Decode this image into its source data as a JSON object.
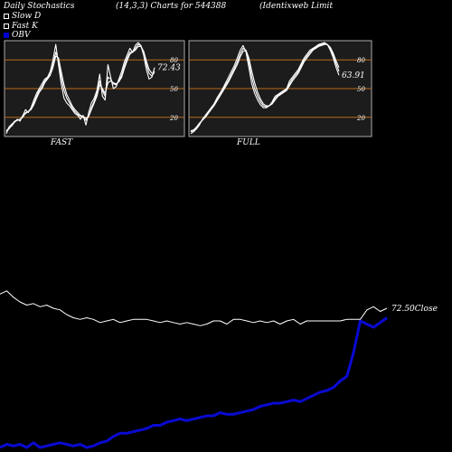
{
  "header": {
    "left": "Daily Stochastics",
    "center": "(14,3,3) Charts for 544388",
    "right": "(Identixweb Limit"
  },
  "legend": [
    {
      "label": "Slow  D",
      "swatch": "white"
    },
    {
      "label": "Fast K",
      "swatch": "white"
    },
    {
      "label": "OBV",
      "swatch": "blue"
    }
  ],
  "colors": {
    "background": "#000000",
    "panel_bg": "#1c1c1c",
    "panel_border": "#aaaaaa",
    "level_line": "#b86a1a",
    "stoch_line": "#ffffff",
    "obv_line": "#0a0ad2",
    "price_line": "#ffffff"
  },
  "chart_data": [
    {
      "type": "line",
      "name": "fast-stochastic",
      "caption": "FAST",
      "ylim": [
        0,
        100
      ],
      "levels": [
        80,
        50,
        20
      ],
      "level_labels": [
        "80",
        "50",
        "20"
      ],
      "last_value_label": "72.43",
      "series": [
        {
          "values": [
            3,
            10,
            13,
            15,
            18,
            16,
            22,
            28,
            25,
            30,
            38,
            45,
            50,
            55,
            60,
            62,
            68,
            80,
            96,
            75,
            55,
            40,
            35,
            32,
            28,
            24,
            22,
            18,
            22,
            12,
            25,
            35,
            40,
            48,
            65,
            42,
            38,
            75,
            62,
            50,
            52,
            60,
            68,
            78,
            85,
            92,
            88,
            95,
            98,
            95,
            85,
            70,
            60,
            62,
            72
          ]
        },
        {
          "values": [
            5,
            8,
            12,
            16,
            17,
            18,
            20,
            25,
            26,
            29,
            35,
            42,
            48,
            52,
            58,
            61,
            65,
            75,
            88,
            80,
            62,
            48,
            40,
            35,
            30,
            26,
            23,
            21,
            20,
            17,
            21,
            30,
            37,
            45,
            58,
            48,
            42,
            62,
            60,
            55,
            54,
            58,
            64,
            74,
            82,
            88,
            88,
            92,
            96,
            95,
            88,
            75,
            66,
            63,
            68
          ]
        },
        {
          "values": [
            6,
            9,
            11,
            15,
            17,
            18,
            21,
            24,
            26,
            28,
            33,
            40,
            46,
            50,
            56,
            60,
            64,
            72,
            84,
            82,
            68,
            54,
            44,
            38,
            32,
            28,
            25,
            22,
            21,
            19,
            21,
            28,
            35,
            42,
            54,
            50,
            45,
            56,
            58,
            56,
            55,
            57,
            62,
            71,
            79,
            86,
            88,
            90,
            94,
            94,
            89,
            79,
            70,
            66,
            66
          ]
        }
      ]
    },
    {
      "type": "line",
      "name": "full-stochastic",
      "caption": "FULL",
      "ylim": [
        0,
        100
      ],
      "levels": [
        80,
        50,
        20
      ],
      "level_labels": [
        "80",
        "50",
        "20"
      ],
      "last_value_label": "63.91",
      "series": [
        {
          "values": [
            3,
            5,
            8,
            12,
            18,
            22,
            26,
            30,
            34,
            40,
            45,
            50,
            56,
            62,
            68,
            74,
            82,
            90,
            95,
            88,
            72,
            55,
            45,
            38,
            33,
            30,
            30,
            32,
            36,
            42,
            44,
            46,
            48,
            50,
            58,
            62,
            66,
            70,
            76,
            82,
            86,
            90,
            92,
            94,
            96,
            97,
            98,
            96,
            90,
            82,
            72,
            64
          ]
        },
        {
          "values": [
            5,
            6,
            9,
            13,
            17,
            21,
            25,
            29,
            33,
            38,
            43,
            48,
            54,
            59,
            65,
            71,
            78,
            86,
            92,
            90,
            78,
            62,
            50,
            42,
            36,
            32,
            31,
            32,
            35,
            40,
            43,
            45,
            47,
            49,
            55,
            60,
            64,
            68,
            74,
            80,
            84,
            88,
            91,
            93,
            95,
            96,
            97,
            96,
            92,
            85,
            76,
            68
          ]
        },
        {
          "values": [
            6,
            7,
            10,
            14,
            17,
            20,
            24,
            28,
            32,
            37,
            42,
            47,
            52,
            57,
            63,
            69,
            75,
            83,
            89,
            90,
            82,
            68,
            56,
            46,
            39,
            34,
            32,
            32,
            34,
            38,
            42,
            44,
            46,
            48,
            53,
            58,
            62,
            66,
            72,
            78,
            82,
            86,
            90,
            92,
            94,
            95,
            96,
            96,
            93,
            87,
            79,
            72
          ]
        }
      ]
    },
    {
      "type": "line",
      "name": "price-and-obv",
      "price_label": "72.50Close",
      "series": [
        {
          "values": [
            97,
            99,
            95,
            92,
            90,
            91,
            89,
            90,
            88,
            87,
            84,
            82,
            81,
            82,
            81,
            79,
            80,
            81,
            79,
            80,
            81,
            81,
            81,
            80,
            79,
            80,
            79,
            78,
            79,
            78,
            77,
            78,
            80,
            80,
            78,
            81,
            81,
            80,
            79,
            80,
            79,
            80,
            78,
            80,
            81,
            78,
            80,
            80,
            80,
            80,
            80,
            80,
            81,
            81,
            81,
            87,
            89,
            86,
            88
          ]
        },
        {
          "values": [
            0,
            2,
            1,
            2,
            0,
            3,
            0,
            1,
            2,
            3,
            2,
            1,
            2,
            0,
            1,
            3,
            4,
            7,
            9,
            9,
            10,
            11,
            12,
            14,
            14,
            16,
            17,
            18,
            17,
            18,
            19,
            20,
            20,
            22,
            21,
            21,
            22,
            23,
            24,
            26,
            27,
            28,
            28,
            29,
            30,
            29,
            31,
            33,
            35,
            36,
            38,
            42,
            45,
            60,
            80,
            78,
            76,
            79,
            82
          ]
        }
      ]
    }
  ]
}
